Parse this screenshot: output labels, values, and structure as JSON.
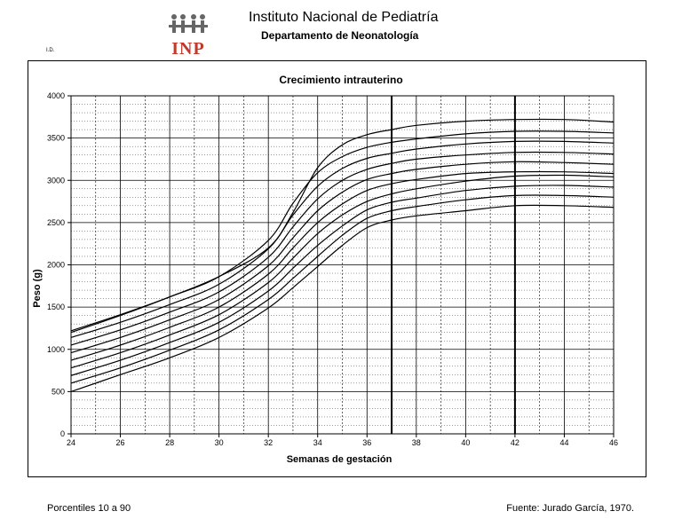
{
  "header": {
    "institution": "Instituto Nacional de Pediatría",
    "department": "Departamento de Neonatología",
    "logo_text": "INP",
    "id_label": "I.D."
  },
  "footer": {
    "left": "Porcentiles 10 a 90",
    "right": "Fuente: Jurado García, 1970."
  },
  "chart_data": {
    "type": "line",
    "title": "Crecimiento intrauterino",
    "xlabel": "Semanas de gestación",
    "ylabel": "Peso (g)",
    "xlim": [
      24,
      46
    ],
    "ylim": [
      0,
      4000
    ],
    "xticks": [
      "24",
      "26",
      "28",
      "30",
      "32",
      "34",
      "36",
      "38",
      "40",
      "42",
      "44",
      "46"
    ],
    "yticks": [
      "0",
      "500",
      "1000",
      "1500",
      "2000",
      "2500",
      "3000",
      "3500",
      "4000"
    ],
    "x": [
      24,
      26,
      28,
      30,
      32,
      33,
      34,
      35,
      36,
      37,
      38,
      40,
      42,
      44,
      46
    ],
    "series": [
      {
        "values": [
          500,
          700,
          900,
          1140,
          1490,
          1730,
          1980,
          2230,
          2440,
          2530,
          2580,
          2640,
          2700,
          2700,
          2680
        ]
      },
      {
        "values": [
          600,
          780,
          990,
          1230,
          1590,
          1840,
          2100,
          2350,
          2550,
          2640,
          2690,
          2770,
          2820,
          2820,
          2800
        ]
      },
      {
        "values": [
          690,
          870,
          1080,
          1320,
          1690,
          1960,
          2230,
          2460,
          2650,
          2740,
          2790,
          2880,
          2930,
          2940,
          2920
        ]
      },
      {
        "values": [
          780,
          960,
          1170,
          1410,
          1790,
          2080,
          2370,
          2590,
          2750,
          2840,
          2900,
          2990,
          3050,
          3060,
          3040
        ]
      },
      {
        "values": [
          870,
          1050,
          1260,
          1500,
          1890,
          2200,
          2500,
          2720,
          2880,
          2960,
          3010,
          3080,
          3100,
          3100,
          3080
        ]
      },
      {
        "values": [
          960,
          1140,
          1350,
          1590,
          1990,
          2320,
          2640,
          2860,
          3010,
          3080,
          3130,
          3190,
          3220,
          3210,
          3190
        ]
      },
      {
        "values": [
          1050,
          1230,
          1440,
          1680,
          2090,
          2450,
          2780,
          3000,
          3130,
          3200,
          3250,
          3300,
          3330,
          3330,
          3310
        ]
      },
      {
        "values": [
          1140,
          1320,
          1530,
          1770,
          2190,
          2590,
          2930,
          3140,
          3260,
          3320,
          3370,
          3430,
          3460,
          3460,
          3440
        ]
      },
      {
        "values": [
          1220,
          1410,
          1620,
          1860,
          2290,
          2730,
          3090,
          3280,
          3390,
          3450,
          3490,
          3550,
          3580,
          3580,
          3560
        ]
      },
      {
        "values": [
          1200,
          1400,
          1620,
          1860,
          2200,
          2620,
          3150,
          3420,
          3540,
          3600,
          3650,
          3700,
          3720,
          3720,
          3690
        ]
      }
    ],
    "grid": true,
    "bold_vertical_lines": [
      37,
      42
    ]
  }
}
